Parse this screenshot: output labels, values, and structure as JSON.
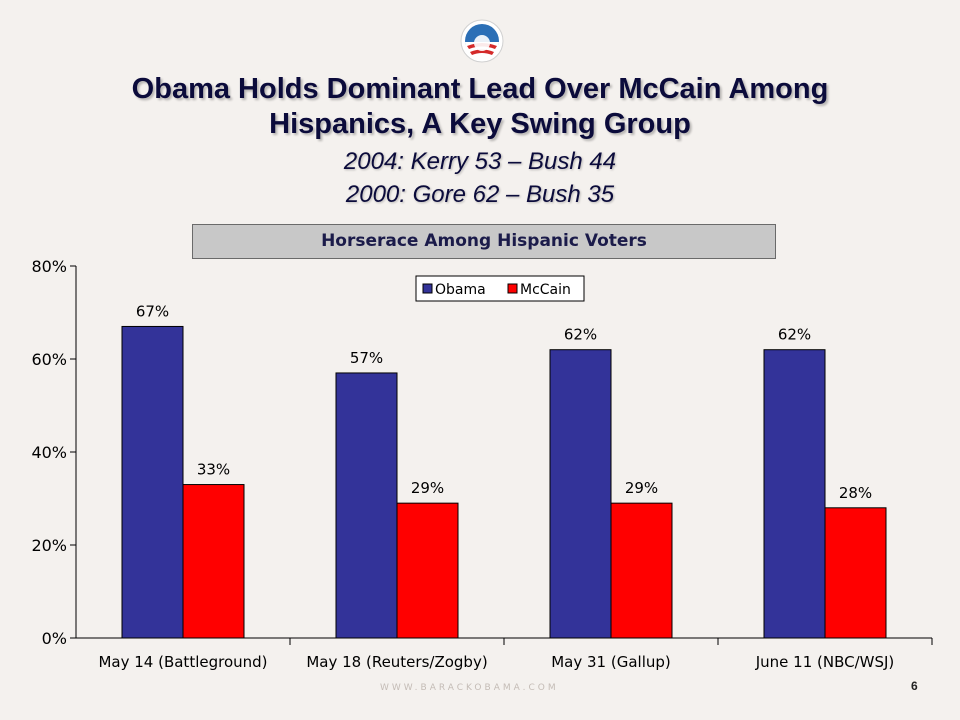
{
  "slide": {
    "title_line1": "Obama Holds Dominant Lead Over McCain Among",
    "title_line2": "Hispanics, A Key Swing Group",
    "subtitle_line1": "2004: Kerry 53 – Bush 44",
    "subtitle_line2": "2000: Gore 62 – Bush 35",
    "footer": "WWW.BARACKOBAMA.COM",
    "page_number": "6"
  },
  "colors": {
    "obama": "#333399",
    "mccain": "#ff0000",
    "text": "#0b0b3b"
  },
  "chart_data": {
    "type": "bar",
    "title": "Horserace Among Hispanic Voters",
    "categories": [
      "May 14 (Battleground)",
      "May 18 (Reuters/Zogby)",
      "May 31 (Gallup)",
      "June 11 (NBC/WSJ)"
    ],
    "series": [
      {
        "name": "Obama",
        "values": [
          67,
          57,
          62,
          62
        ],
        "labels": [
          "67%",
          "57%",
          "62%",
          "62%"
        ]
      },
      {
        "name": "McCain",
        "values": [
          33,
          29,
          29,
          28
        ],
        "labels": [
          "33%",
          "29%",
          "29%",
          "28%"
        ]
      }
    ],
    "ylim": [
      0,
      80
    ],
    "yticks": [
      0,
      20,
      40,
      60,
      80
    ],
    "ytick_labels": [
      "0%",
      "20%",
      "40%",
      "60%",
      "80%"
    ],
    "xlabel": "",
    "ylabel": "",
    "grid": false,
    "legend_position": "top-center"
  }
}
